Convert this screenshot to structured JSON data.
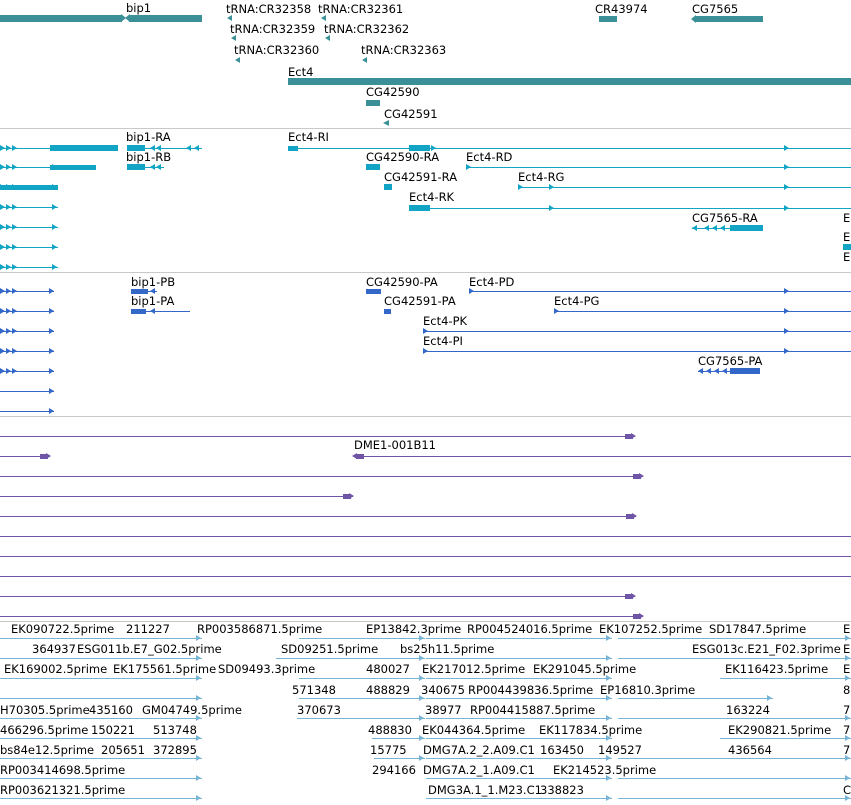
{
  "colors": {
    "gene": "#3b9098",
    "transcript": "#11a4c4",
    "protein": "#3468c8",
    "align": "#6e55a6",
    "est": "#78b4d6",
    "separator": "#c9c9c9"
  },
  "tracks": {
    "genes": {
      "labels": [
        "bip1",
        "tRNA:CR32358",
        "tRNA:CR32361",
        "tRNA:CR32359",
        "tRNA:CR32362",
        "tRNA:CR32360",
        "tRNA:CR32363",
        "CR43974",
        "CG7565",
        "Ect4",
        "CG42590",
        "CG42591"
      ]
    },
    "transcripts": {
      "labels": [
        "bip1-RA",
        "bip1-RB",
        "Ect4-RI",
        "CG42590-RA",
        "Ect4-RD",
        "CG42591-RA",
        "Ect4-RG",
        "Ect4-RK",
        "CG7565-RA",
        "E",
        "E",
        "E"
      ]
    },
    "proteins": {
      "labels": [
        "bip1-PB",
        "bip1-PA",
        "CG42590-PA",
        "Ect4-PD",
        "CG42591-PA",
        "Ect4-PG",
        "Ect4-PK",
        "Ect4-PI",
        "CG7565-PA"
      ]
    },
    "alignments": {
      "labels": [
        "DME1-001B11"
      ]
    },
    "ests": {
      "labels": [
        "EK090722.5prime",
        "211227",
        "RP003586871.5prime",
        "EP13842.3prime",
        "RP004524016.5prime",
        "EK107252.5prime",
        "SD17847.5prime",
        "E",
        "364937",
        "ESG011b.E7_G02.5prime",
        "SD09251.5prime",
        "bs25h11.5prime",
        "ESG013c.E21_F02.3prime",
        "E",
        "EK169002.5prime",
        "EK175561.5prime",
        "SD09493.3prime",
        "480027",
        "EK217012.5prime",
        "EK291045.5prime",
        "EK116423.5prime",
        "E",
        "571348",
        "488829",
        "340675",
        "RP004439836.5prime",
        "EP16810.3prime",
        "8",
        "H70305.5prime",
        "435160",
        "GM04749.5prime",
        "370673",
        "38977",
        "RP004415887.5prime",
        "163224",
        "7",
        "466296.5prime",
        "150221",
        "513748",
        "488830",
        "EK044364.5prime",
        "EK117834.5prime",
        "EK290821.5prime",
        "7",
        "bs84e12.5prime",
        "205651",
        "372895",
        "15775",
        "DMG7A.2_2.A09.C1",
        "163450",
        "149527",
        "436564",
        "7",
        "RP003414698.5prime",
        "294166",
        "DMG7A.2_1.A09.C1",
        "EK214523.5prime",
        "RP003621321.5prime",
        "DMG3A.1_1.M23.C1",
        "338823",
        "C"
      ]
    }
  }
}
